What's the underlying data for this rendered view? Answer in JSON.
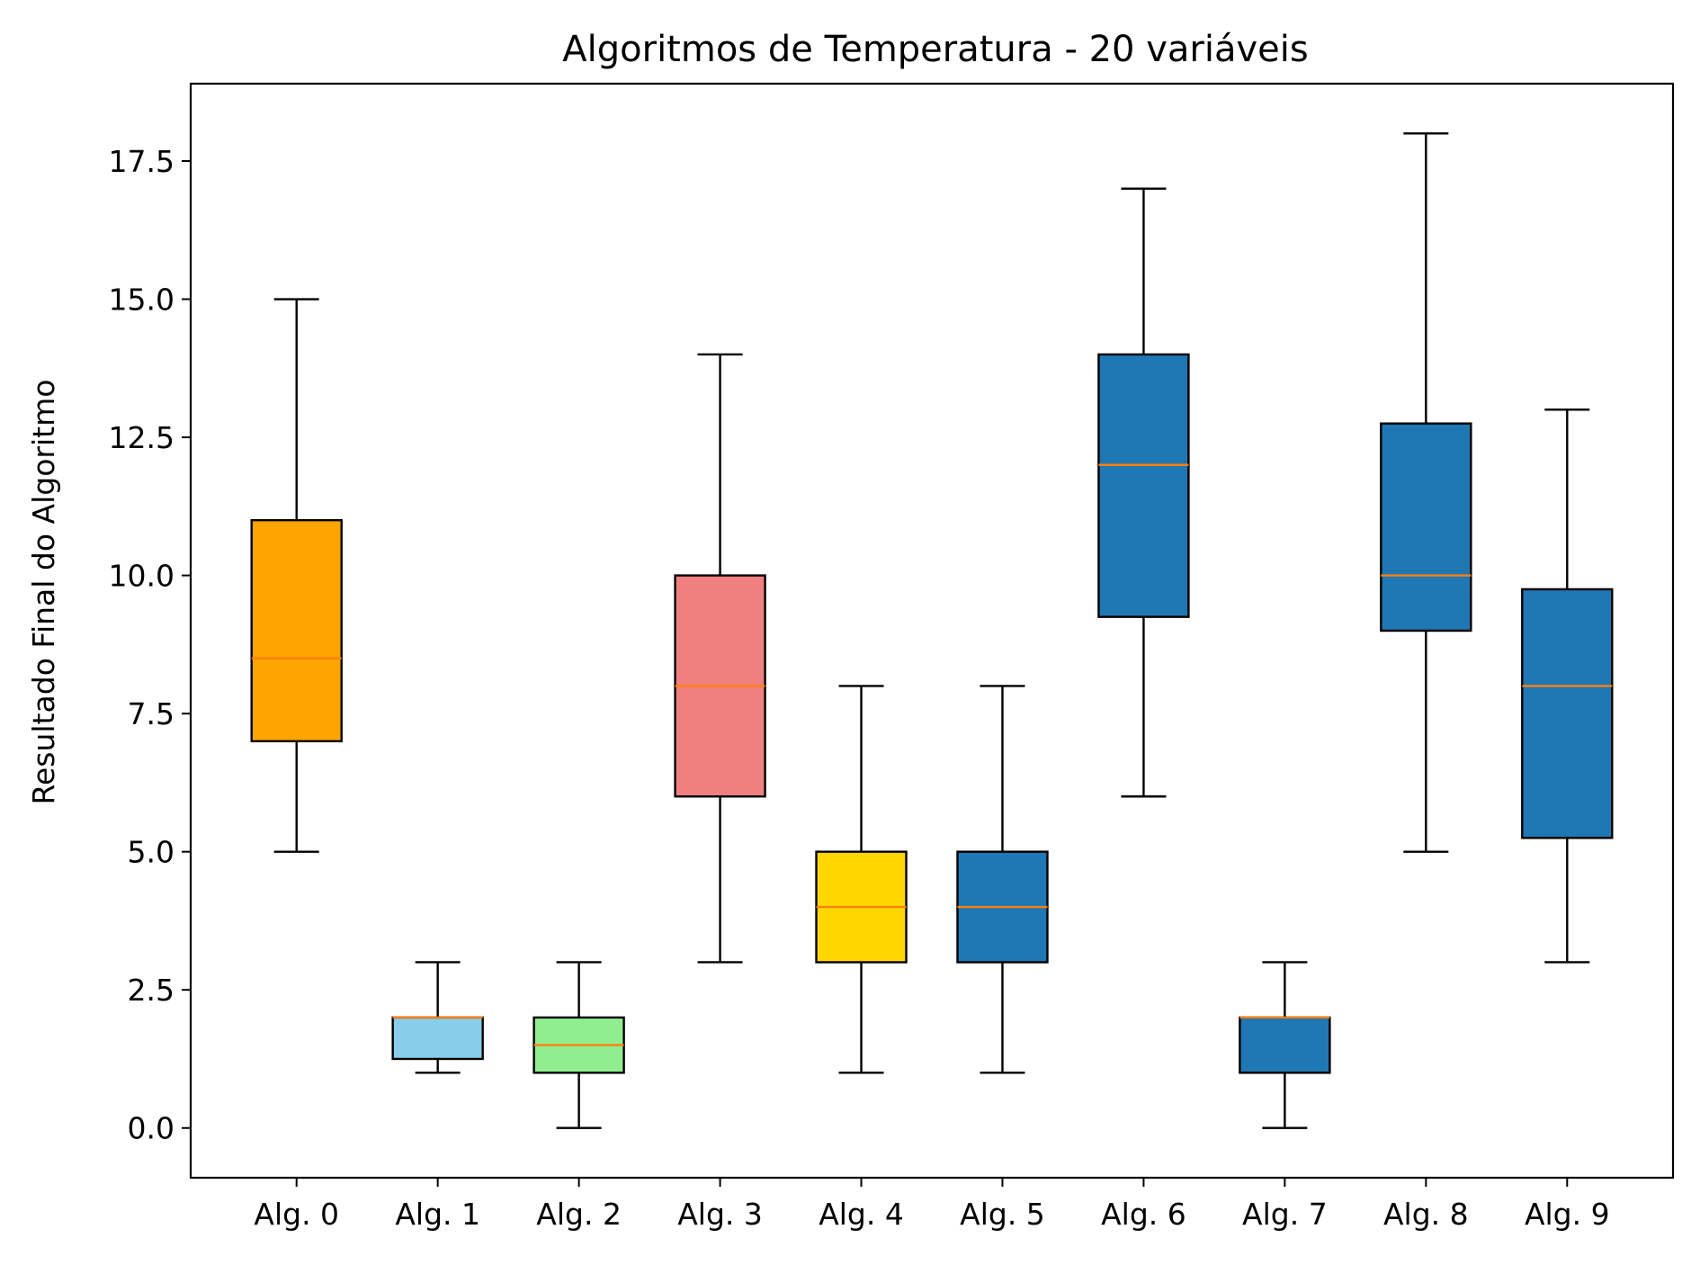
{
  "chart_data": {
    "type": "box",
    "title": "Algoritmos de Temperatura - 20 variáveis",
    "xlabel": "",
    "ylabel": "Resultado Final do Algoritmo",
    "ylim": [
      -0.9,
      18.9
    ],
    "yticks": [
      0.0,
      2.5,
      5.0,
      7.5,
      10.0,
      12.5,
      15.0,
      17.5
    ],
    "ytick_labels": [
      "0.0",
      "2.5",
      "5.0",
      "7.5",
      "10.0",
      "12.5",
      "15.0",
      "17.5"
    ],
    "grid": false,
    "categories": [
      "Alg. 0",
      "Alg. 1",
      "Alg. 2",
      "Alg. 3",
      "Alg. 4",
      "Alg. 5",
      "Alg. 6",
      "Alg. 7",
      "Alg. 8",
      "Alg. 9"
    ],
    "boxes": [
      {
        "whislo": 5,
        "q1": 7,
        "med": 8.5,
        "q3": 11,
        "whishi": 15,
        "color": "#FFA500"
      },
      {
        "whislo": 1,
        "q1": 1.25,
        "med": 2,
        "q3": 2,
        "whishi": 3,
        "color": "#87CEEB"
      },
      {
        "whislo": 0,
        "q1": 1,
        "med": 1.5,
        "q3": 2,
        "whishi": 3,
        "color": "#90EE90"
      },
      {
        "whislo": 3,
        "q1": 6,
        "med": 8,
        "q3": 10,
        "whishi": 14,
        "color": "#F08080"
      },
      {
        "whislo": 1,
        "q1": 3,
        "med": 4,
        "q3": 5,
        "whishi": 8,
        "color": "#FFD700"
      },
      {
        "whislo": 1,
        "q1": 3,
        "med": 4,
        "q3": 5,
        "whishi": 8,
        "color": "#1F77B4"
      },
      {
        "whislo": 6,
        "q1": 9.25,
        "med": 12,
        "q3": 14,
        "whishi": 17,
        "color": "#1F77B4"
      },
      {
        "whislo": 0,
        "q1": 1,
        "med": 2,
        "q3": 2,
        "whishi": 3,
        "color": "#1F77B4"
      },
      {
        "whislo": 5,
        "q1": 9,
        "med": 10,
        "q3": 12.75,
        "whishi": 18,
        "color": "#1F77B4"
      },
      {
        "whislo": 3,
        "q1": 5.25,
        "med": 8,
        "q3": 9.75,
        "whishi": 13,
        "color": "#1F77B4"
      }
    ],
    "median_color": "#FF7F0E",
    "edge_color": "#000000"
  }
}
